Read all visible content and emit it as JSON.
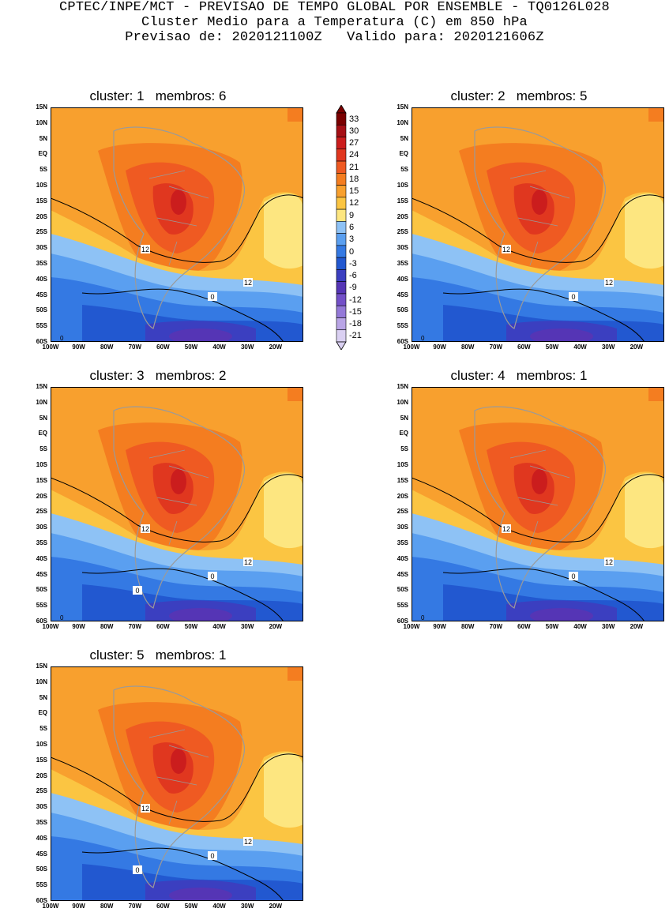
{
  "header": {
    "line1": "CPTEC/INPE/MCT - PREVISAO DE TEMPO GLOBAL POR ENSEMBLE - TQ0126L028",
    "line2": "Cluster Medio para a Temperatura (C) em 850 hPa",
    "line3": "Previsao de: 2020121100Z   Valido para: 2020121606Z"
  },
  "axes": {
    "y_ticks": [
      "15N",
      "10N",
      "5N",
      "EQ",
      "5S",
      "10S",
      "15S",
      "20S",
      "25S",
      "30S",
      "35S",
      "40S",
      "45S",
      "50S",
      "55S",
      "60S"
    ],
    "x_ticks": [
      "100W",
      "90W",
      "80W",
      "70W",
      "60W",
      "50W",
      "40W",
      "30W",
      "20W"
    ]
  },
  "colorbar": {
    "levels": [
      "33",
      "30",
      "27",
      "24",
      "21",
      "18",
      "15",
      "12",
      "9",
      "6",
      "3",
      "0",
      "-3",
      "-6",
      "-9",
      "-12",
      "-15",
      "-18",
      "-21"
    ],
    "colors": [
      "#7a0000",
      "#a50f15",
      "#cb1d1d",
      "#e0371f",
      "#ef5a22",
      "#f47d20",
      "#f8a02e",
      "#fbc542",
      "#fde680",
      "#8ec2f5",
      "#5a9ff0",
      "#3479e3",
      "#2258d0",
      "#3b3fc0",
      "#5535b5",
      "#7350c8",
      "#9479d8",
      "#b9a5e6",
      "#dad0f2"
    ]
  },
  "panels": [
    {
      "title": "cluster: 1   membros: 6",
      "labels": [
        "12",
        "12",
        "0"
      ],
      "bottom_label": "0"
    },
    {
      "title": "cluster: 2   membros: 5",
      "labels": [
        "12",
        "12",
        "0"
      ],
      "bottom_label": "0"
    },
    {
      "title": "cluster: 3   membros: 2",
      "labels": [
        "12",
        "12",
        "0",
        "0"
      ],
      "bottom_label": "0"
    },
    {
      "title": "cluster: 4   membros: 1",
      "labels": [
        "12",
        "12",
        "0"
      ],
      "bottom_label": "0"
    },
    {
      "title": "cluster: 5   membros: 1",
      "labels": [
        "12",
        "12",
        "0",
        "0"
      ],
      "bottom_label": ""
    }
  ]
}
